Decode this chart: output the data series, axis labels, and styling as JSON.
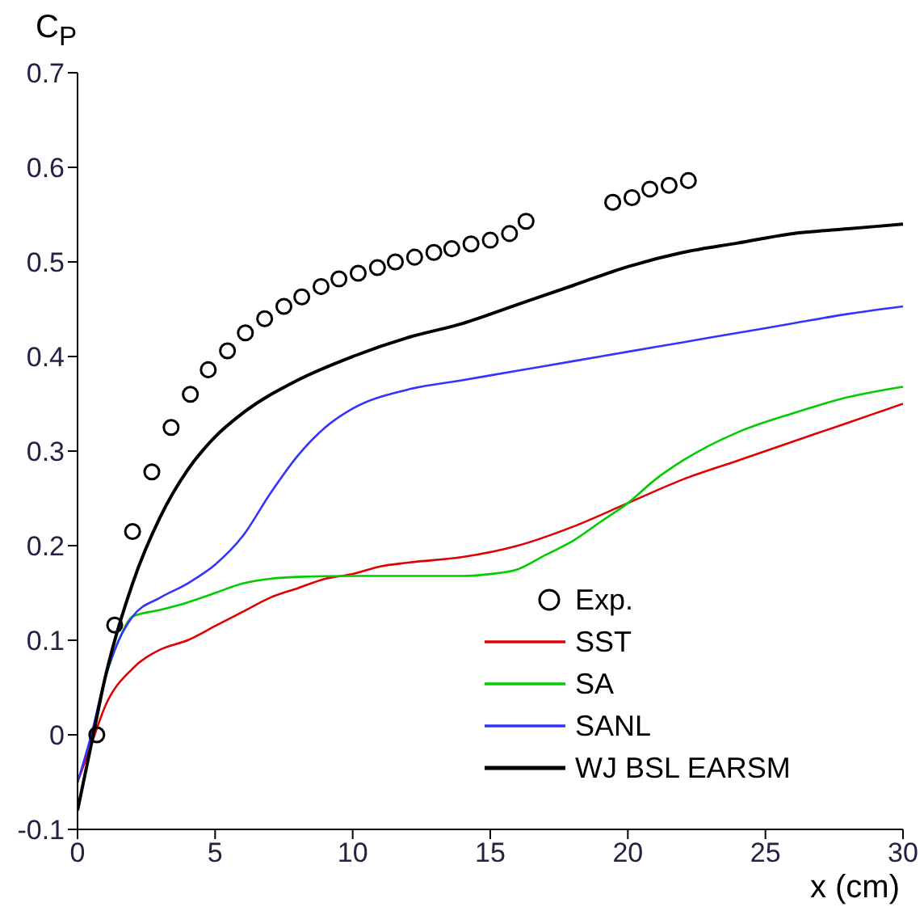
{
  "chart_data": {
    "type": "line",
    "xlabel": "x (cm)",
    "ylabel": "C$_{P}$",
    "xlim": [
      0,
      30
    ],
    "ylim": [
      -0.1,
      0.7
    ],
    "xticks": [
      0,
      5,
      10,
      15,
      20,
      25,
      30
    ],
    "yticks": [
      -0.1,
      0,
      0.1,
      0.2,
      0.3,
      0.4,
      0.5,
      0.6,
      0.7
    ],
    "legend": "bottom right",
    "grid": false,
    "series": [
      {
        "name": "Exp.",
        "type": "scatter",
        "marker": "circle",
        "color": "#000000",
        "x": [
          0.7,
          1.35,
          2.0,
          2.7,
          3.4,
          4.1,
          4.75,
          5.45,
          6.1,
          6.8,
          7.5,
          8.15,
          8.85,
          9.5,
          10.2,
          10.9,
          11.55,
          12.25,
          12.95,
          13.6,
          14.3,
          15.0,
          15.7,
          16.3,
          19.45,
          20.15,
          20.8,
          21.5,
          22.2
        ],
        "values": [
          0.0,
          0.116,
          0.215,
          0.278,
          0.325,
          0.36,
          0.386,
          0.406,
          0.425,
          0.44,
          0.453,
          0.463,
          0.474,
          0.482,
          0.488,
          0.494,
          0.5,
          0.505,
          0.51,
          0.514,
          0.519,
          0.523,
          0.53,
          0.543,
          0.563,
          0.568,
          0.577,
          0.581,
          0.586
        ]
      },
      {
        "name": "SST",
        "color": "#e00000",
        "x": [
          0,
          0.5,
          1,
          2,
          3,
          4,
          5,
          6,
          7,
          8,
          9,
          10,
          11,
          12,
          14,
          16,
          18,
          20,
          22,
          24,
          26,
          28,
          30
        ],
        "values": [
          -0.05,
          -0.01,
          0.03,
          0.07,
          0.09,
          0.1,
          0.115,
          0.13,
          0.145,
          0.155,
          0.165,
          0.17,
          0.178,
          0.182,
          0.188,
          0.2,
          0.22,
          0.245,
          0.27,
          0.29,
          0.31,
          0.33,
          0.35
        ]
      },
      {
        "name": "SA",
        "color": "#00cc00",
        "x": [
          1,
          1.5,
          2,
          3,
          4,
          5,
          6,
          7,
          8,
          10,
          12,
          14,
          15,
          16,
          17,
          18,
          19,
          20,
          21,
          22,
          24,
          26,
          28,
          30
        ],
        "values": [
          0.06,
          0.1,
          0.125,
          0.132,
          0.14,
          0.15,
          0.16,
          0.165,
          0.167,
          0.168,
          0.168,
          0.168,
          0.17,
          0.175,
          0.19,
          0.205,
          0.225,
          0.245,
          0.27,
          0.29,
          0.32,
          0.34,
          0.357,
          0.368
        ]
      },
      {
        "name": "SANL",
        "color": "#3333ff",
        "x": [
          0,
          0.5,
          1,
          1.5,
          2,
          3,
          4,
          5,
          6,
          7,
          8,
          9,
          10,
          12,
          14,
          16,
          18,
          20,
          22,
          24,
          26,
          28,
          30
        ],
        "values": [
          -0.05,
          0,
          0.06,
          0.1,
          0.125,
          0.145,
          0.16,
          0.18,
          0.21,
          0.255,
          0.295,
          0.325,
          0.345,
          0.365,
          0.375,
          0.385,
          0.395,
          0.405,
          0.415,
          0.425,
          0.435,
          0.445,
          0.453
        ]
      },
      {
        "name": "WJ BSL EARSM",
        "color": "#000000",
        "x": [
          0,
          0.5,
          1,
          2,
          3,
          4,
          5,
          6,
          8,
          10,
          12,
          14,
          16,
          18,
          20,
          22,
          24,
          26,
          28,
          30
        ],
        "values": [
          -0.08,
          -0.01,
          0.06,
          0.16,
          0.23,
          0.28,
          0.315,
          0.34,
          0.375,
          0.4,
          0.42,
          0.435,
          0.455,
          0.475,
          0.495,
          0.51,
          0.52,
          0.53,
          0.535,
          0.54
        ]
      }
    ]
  }
}
